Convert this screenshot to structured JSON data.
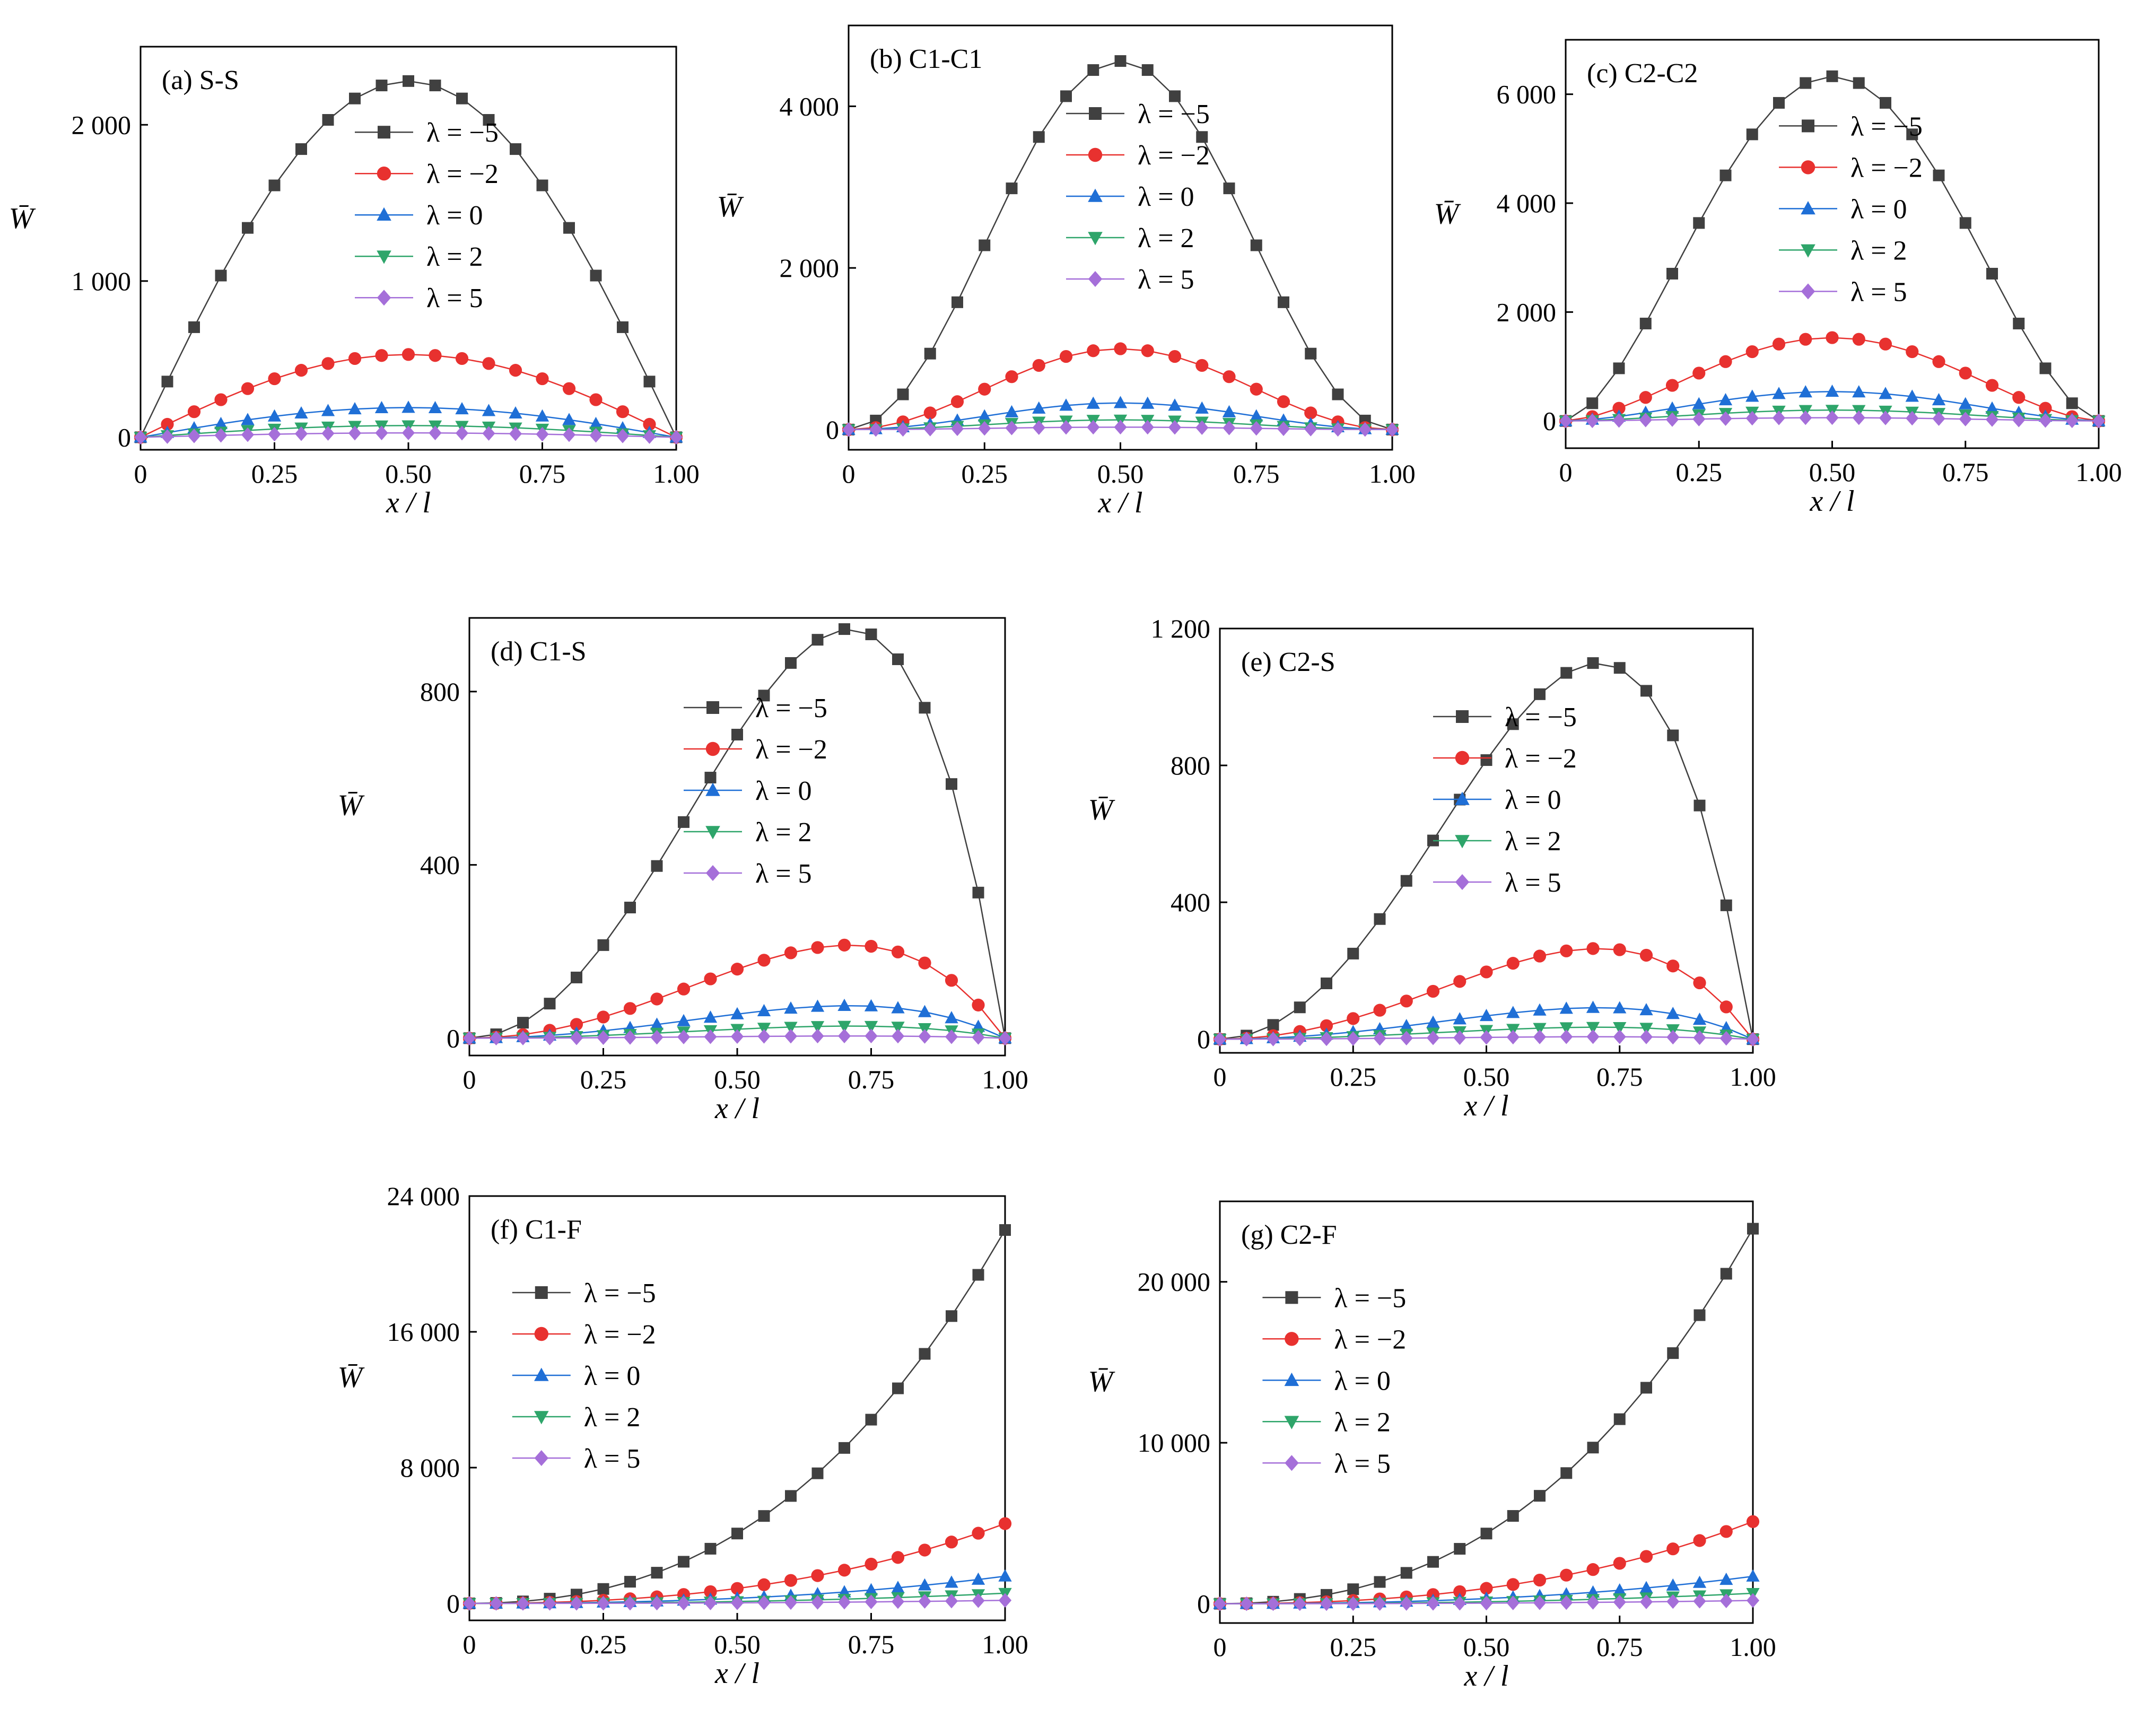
{
  "palette": {
    "lambda_-5": "#404040",
    "lambda_-2": "#e8312f",
    "lambda_0": "#1f6fd6",
    "lambda_2": "#2ea56a",
    "lambda_5": "#a56fd9"
  },
  "chart_data": [
    {
      "type": "line",
      "title": "(a) S-S",
      "xlabel": "x / l",
      "ylabel": "W̄",
      "xlim": [
        0,
        1
      ],
      "ylim": [
        -80,
        2500
      ],
      "x_ticks": [
        0,
        0.25,
        0.5,
        0.75,
        1.0
      ],
      "x_tick_labels": [
        "0",
        "0.25",
        "0.50",
        "0.75",
        "1.00"
      ],
      "y_ticks": [
        0,
        1000,
        2000
      ],
      "y_tick_labels": [
        "0",
        "1 000",
        "2 000"
      ],
      "profile": "sine",
      "legend": "center",
      "series": [
        {
          "name": "λ = −5",
          "peak": 2280,
          "marker": "square"
        },
        {
          "name": "λ = −2",
          "peak": 530,
          "marker": "circle"
        },
        {
          "name": "λ = 0",
          "peak": 190,
          "marker": "triangle-up"
        },
        {
          "name": "λ = 2",
          "peak": 75,
          "marker": "triangle-down"
        },
        {
          "name": "λ = 5",
          "peak": 28,
          "marker": "diamond"
        }
      ]
    },
    {
      "type": "line",
      "title": "(b) C1-C1",
      "xlabel": "x / l",
      "ylabel": "W̄",
      "xlim": [
        0,
        1
      ],
      "ylim": [
        -250,
        5000
      ],
      "x_ticks": [
        0,
        0.25,
        0.5,
        0.75,
        1.0
      ],
      "x_tick_labels": [
        "0",
        "0.25",
        "0.50",
        "0.75",
        "1.00"
      ],
      "y_ticks": [
        0,
        2000,
        4000
      ],
      "y_tick_labels": [
        "0",
        "2 000",
        "4 000"
      ],
      "profile": "clamped",
      "legend": "center",
      "series": [
        {
          "name": "λ = −5",
          "peak": 4560,
          "marker": "square"
        },
        {
          "name": "λ = −2",
          "peak": 1000,
          "marker": "circle"
        },
        {
          "name": "λ = 0",
          "peak": 330,
          "marker": "triangle-up"
        },
        {
          "name": "λ = 2",
          "peak": 120,
          "marker": "triangle-down"
        },
        {
          "name": "λ = 5",
          "peak": 30,
          "marker": "diamond"
        }
      ]
    },
    {
      "type": "line",
      "title": "(c) C2-C2",
      "xlabel": "x / l",
      "ylabel": "W̄",
      "xlim": [
        0,
        1
      ],
      "ylim": [
        -500,
        7000
      ],
      "x_ticks": [
        0,
        0.25,
        0.5,
        0.75,
        1.0
      ],
      "x_tick_labels": [
        "0",
        "0.25",
        "0.50",
        "0.75",
        "1.00"
      ],
      "y_ticks": [
        0,
        2000,
        4000,
        6000
      ],
      "y_tick_labels": [
        "0",
        "2 000",
        "4 000",
        "6 000"
      ],
      "profile": "clamped2",
      "legend": "center",
      "series": [
        {
          "name": "λ = −5",
          "peak": 6330,
          "marker": "square"
        },
        {
          "name": "λ = −2",
          "peak": 1530,
          "marker": "circle"
        },
        {
          "name": "λ = 0",
          "peak": 540,
          "marker": "triangle-up"
        },
        {
          "name": "λ = 2",
          "peak": 200,
          "marker": "triangle-down"
        },
        {
          "name": "λ = 5",
          "peak": 60,
          "marker": "diamond"
        }
      ]
    },
    {
      "type": "line",
      "title": "(d) C1-S",
      "xlabel": "x / l",
      "ylabel": "W̄",
      "xlim": [
        0,
        1
      ],
      "ylim": [
        -40,
        970
      ],
      "x_ticks": [
        0,
        0.25,
        0.5,
        0.75,
        1.0
      ],
      "x_tick_labels": [
        "0",
        "0.25",
        "0.50",
        "0.75",
        "1.00"
      ],
      "y_ticks": [
        0,
        400,
        800
      ],
      "y_tick_labels": [
        "0",
        "400",
        "800"
      ],
      "profile": "propped",
      "legend": "center",
      "series": [
        {
          "name": "λ = −5",
          "peak": 945,
          "marker": "square"
        },
        {
          "name": "λ = −2",
          "peak": 215,
          "marker": "circle"
        },
        {
          "name": "λ = 0",
          "peak": 75,
          "marker": "triangle-up"
        },
        {
          "name": "λ = 2",
          "peak": 28,
          "marker": "triangle-down"
        },
        {
          "name": "λ = 5",
          "peak": 5,
          "marker": "diamond"
        }
      ]
    },
    {
      "type": "line",
      "title": "(e) C2-S",
      "xlabel": "x / l",
      "ylabel": "W̄",
      "xlim": [
        0,
        1
      ],
      "ylim": [
        -40,
        1200
      ],
      "x_ticks": [
        0,
        0.25,
        0.5,
        0.75,
        1.0
      ],
      "x_tick_labels": [
        "0",
        "0.25",
        "0.50",
        "0.75",
        "1.00"
      ],
      "y_ticks": [
        0,
        400,
        800,
        1200
      ],
      "y_tick_labels": [
        "0",
        "400",
        "800",
        "1 200"
      ],
      "profile": "propped",
      "legend": "center",
      "series": [
        {
          "name": "λ = −5",
          "peak": 1100,
          "marker": "square"
        },
        {
          "name": "λ = −2",
          "peak": 265,
          "marker": "circle"
        },
        {
          "name": "λ = 0",
          "peak": 92,
          "marker": "triangle-up"
        },
        {
          "name": "λ = 2",
          "peak": 35,
          "marker": "triangle-down"
        },
        {
          "name": "λ = 5",
          "peak": 7,
          "marker": "diamond"
        }
      ]
    },
    {
      "type": "line",
      "title": "(f) C1-F",
      "xlabel": "x / l",
      "ylabel": "W̄",
      "xlim": [
        0,
        1
      ],
      "ylim": [
        -1000,
        24000
      ],
      "x_ticks": [
        0,
        0.25,
        0.5,
        0.75,
        1.0
      ],
      "x_tick_labels": [
        "0",
        "0.25",
        "0.50",
        "0.75",
        "1.00"
      ],
      "y_ticks": [
        0,
        8000,
        16000,
        24000
      ],
      "y_tick_labels": [
        "0",
        "8 000",
        "16 000",
        "24 000"
      ],
      "profile": "cantilever",
      "legend": "upper-left",
      "series": [
        {
          "name": "λ = −5",
          "peak": 22000,
          "marker": "square"
        },
        {
          "name": "λ = −2",
          "peak": 4700,
          "marker": "circle"
        },
        {
          "name": "λ = 0",
          "peak": 1600,
          "marker": "triangle-up"
        },
        {
          "name": "λ = 2",
          "peak": 600,
          "marker": "triangle-down"
        },
        {
          "name": "λ = 5",
          "peak": 180,
          "marker": "diamond"
        }
      ]
    },
    {
      "type": "line",
      "title": "(g) C2-F",
      "xlabel": "x / l",
      "ylabel": "W̄",
      "xlim": [
        0,
        1
      ],
      "ylim": [
        -1200,
        25000
      ],
      "x_ticks": [
        0,
        0.25,
        0.5,
        0.75,
        1.0
      ],
      "x_tick_labels": [
        "0",
        "0.25",
        "0.50",
        "0.75",
        "1.00"
      ],
      "y_ticks": [
        0,
        10000,
        20000
      ],
      "y_tick_labels": [
        "0",
        "10 000",
        "20 000"
      ],
      "profile": "cantilever",
      "legend": "upper-left",
      "series": [
        {
          "name": "λ = −5",
          "peak": 23300,
          "marker": "square"
        },
        {
          "name": "λ = −2",
          "peak": 5100,
          "marker": "circle"
        },
        {
          "name": "λ = 0",
          "peak": 1700,
          "marker": "triangle-up"
        },
        {
          "name": "λ = 2",
          "peak": 650,
          "marker": "triangle-down"
        },
        {
          "name": "λ = 5",
          "peak": 200,
          "marker": "diamond"
        }
      ]
    }
  ]
}
